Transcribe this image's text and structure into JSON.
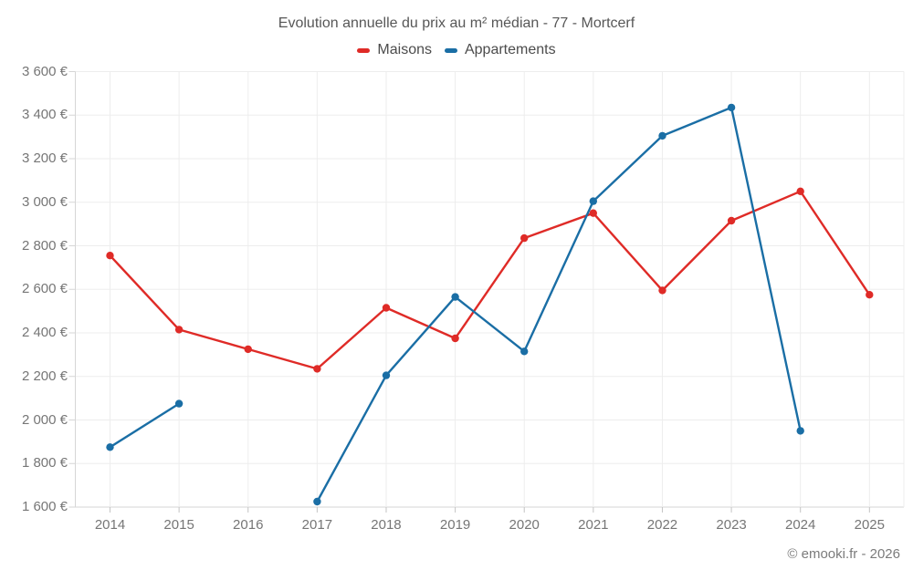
{
  "title": "Evolution annuelle du prix au m² médian - 77 - Mortcerf",
  "legend": {
    "items": [
      {
        "label": "Maisons",
        "color": "#df2b27"
      },
      {
        "label": "Appartements",
        "color": "#1a6ea5"
      }
    ]
  },
  "footer": {
    "copyright": "© emooki.fr - 2026"
  },
  "colors": {
    "grid": "#ededed",
    "axis": "#d6d6d6",
    "tick": "#c4c4c4",
    "text": "#767676"
  },
  "chart_data": {
    "type": "line",
    "x": [
      2014,
      2015,
      2016,
      2017,
      2018,
      2019,
      2020,
      2021,
      2022,
      2023,
      2024,
      2025
    ],
    "series": [
      {
        "name": "Maisons",
        "color": "#df2b27",
        "values": [
          2755,
          2415,
          2325,
          2235,
          2515,
          2375,
          2835,
          2950,
          2595,
          2915,
          3050,
          2575
        ]
      },
      {
        "name": "Appartements",
        "color": "#1a6ea5",
        "values": [
          1875,
          2075,
          null,
          1625,
          2205,
          2565,
          2315,
          3005,
          3305,
          3435,
          1950,
          null
        ]
      }
    ],
    "ylim": [
      1600,
      3600
    ],
    "ytick_step": 200,
    "ytick_labels": [
      "1 600 €",
      "1 800 €",
      "2 000 €",
      "2 200 €",
      "2 400 €",
      "2 600 €",
      "2 800 €",
      "3 000 €",
      "3 200 €",
      "3 400 €",
      "3 600 €"
    ],
    "ylabel_suffix": "€",
    "grid": true,
    "legend_position": "top"
  }
}
